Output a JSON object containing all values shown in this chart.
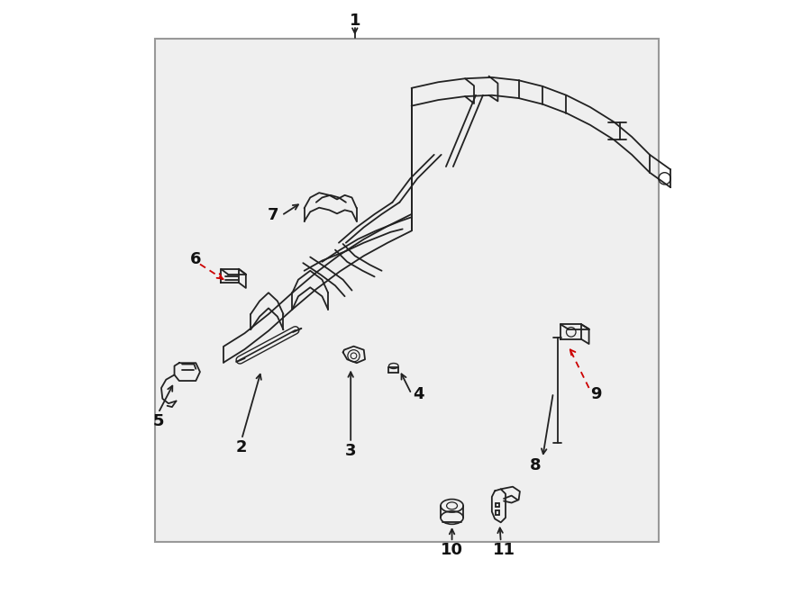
{
  "bg_color": "#ffffff",
  "box_facecolor": "#efefef",
  "box_edgecolor": "#999999",
  "line_color": "#222222",
  "red_dash_color": "#cc0000",
  "fig_width": 9.0,
  "fig_height": 6.61,
  "dpi": 100
}
